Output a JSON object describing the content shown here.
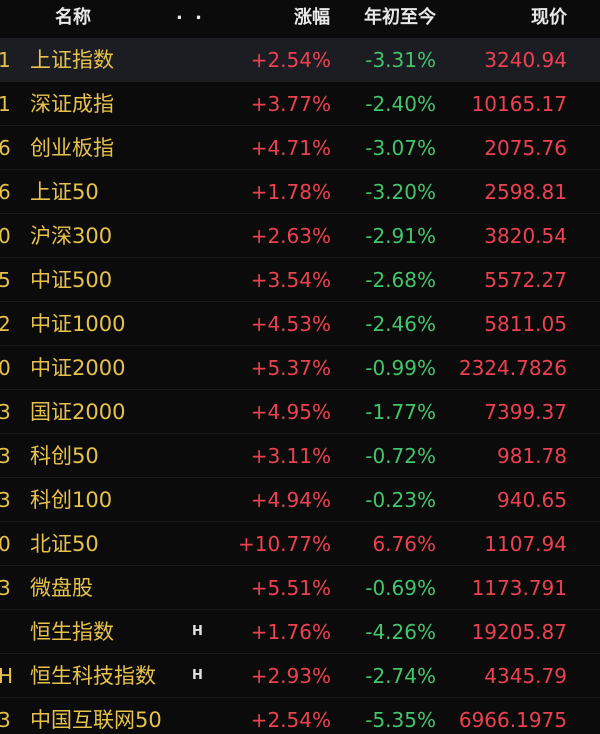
{
  "colors": {
    "background": "#0b0b0b",
    "highlight_row": "#1c1c23",
    "name": "#e6c24c",
    "up": "#ec4150",
    "down": "#42c56c",
    "header_text": "#e8e8e8",
    "badge": "#e0e0e0"
  },
  "header": {
    "name_label": "名称",
    "more_label": ". .",
    "change_label": "涨幅",
    "ytd_label": "年初至今",
    "price_label": "现价"
  },
  "rows": [
    {
      "code_tail": "1",
      "name": "上证指数",
      "badge": "",
      "change": "+2.54%",
      "ytd": "-3.31%",
      "price": "3240.94",
      "selected": true
    },
    {
      "code_tail": "1",
      "name": "深证成指",
      "badge": "",
      "change": "+3.77%",
      "ytd": "-2.40%",
      "price": "10165.17",
      "selected": false
    },
    {
      "code_tail": "6",
      "name": "创业板指",
      "badge": "",
      "change": "+4.71%",
      "ytd": "-3.07%",
      "price": "2075.76",
      "selected": false
    },
    {
      "code_tail": "6",
      "name": "上证50",
      "badge": "",
      "change": "+1.78%",
      "ytd": "-3.20%",
      "price": "2598.81",
      "selected": false
    },
    {
      "code_tail": "0",
      "name": "沪深300",
      "badge": "",
      "change": "+2.63%",
      "ytd": "-2.91%",
      "price": "3820.54",
      "selected": false
    },
    {
      "code_tail": "5",
      "name": "中证500",
      "badge": "",
      "change": "+3.54%",
      "ytd": "-2.68%",
      "price": "5572.27",
      "selected": false
    },
    {
      "code_tail": "2",
      "name": "中证1000",
      "badge": "",
      "change": "+4.53%",
      "ytd": "-2.46%",
      "price": "5811.05",
      "selected": false
    },
    {
      "code_tail": "0",
      "name": "中证2000",
      "badge": "",
      "change": "+5.37%",
      "ytd": "-0.99%",
      "price": "2324.7826",
      "selected": false
    },
    {
      "code_tail": "3",
      "name": "国证2000",
      "badge": "",
      "change": "+4.95%",
      "ytd": "-1.77%",
      "price": "7399.37",
      "selected": false
    },
    {
      "code_tail": "3",
      "name": "科创50",
      "badge": "",
      "change": "+3.11%",
      "ytd": "-0.72%",
      "price": "981.78",
      "selected": false
    },
    {
      "code_tail": "3",
      "name": "科创100",
      "badge": "",
      "change": "+4.94%",
      "ytd": "-0.23%",
      "price": "940.65",
      "selected": false
    },
    {
      "code_tail": "0",
      "name": "北证50",
      "badge": "",
      "change": "+10.77%",
      "ytd": "6.76%",
      "price": "1107.94",
      "selected": false
    },
    {
      "code_tail": "3",
      "name": "微盘股",
      "badge": "",
      "change": "+5.51%",
      "ytd": "-0.69%",
      "price": "1173.791",
      "selected": false
    },
    {
      "code_tail": "",
      "name": "恒生指数",
      "badge": "H",
      "change": "+1.76%",
      "ytd": "-4.26%",
      "price": "19205.87",
      "selected": false
    },
    {
      "code_tail": "H",
      "name": "恒生科技指数",
      "badge": "H",
      "change": "+2.93%",
      "ytd": "-2.74%",
      "price": "4345.79",
      "selected": false
    },
    {
      "code_tail": "3",
      "name": "中国互联网50",
      "badge": "",
      "change": "+2.54%",
      "ytd": "-5.35%",
      "price": "6966.1975",
      "selected": false
    }
  ]
}
